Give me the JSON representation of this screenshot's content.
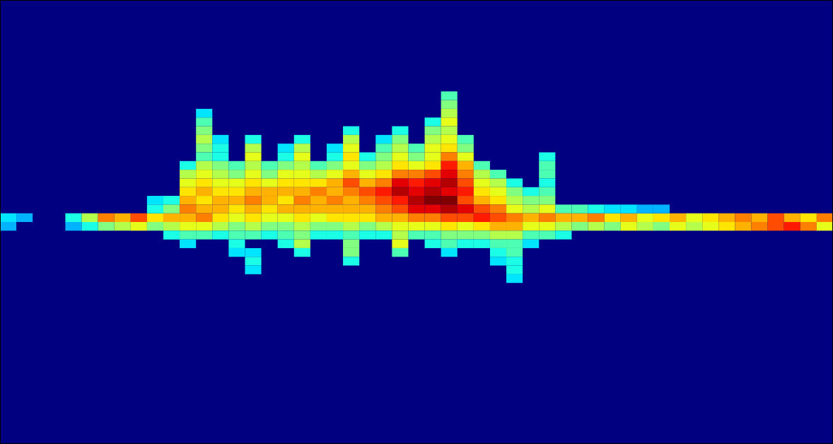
{
  "chart_data": {
    "type": "heatmap",
    "xlim": [
      0,
      102
    ],
    "ylim": [
      -51,
      51
    ],
    "xticks": [
      10,
      20,
      30,
      40,
      50,
      60,
      70,
      80,
      90
    ],
    "yticks": [
      -40,
      -30,
      -20,
      -10,
      0,
      10,
      20,
      30,
      40
    ],
    "tick_labels": false,
    "cell_size": [
      2,
      2
    ],
    "color_range": [
      0,
      1
    ],
    "cells": [
      [
        1,
        1,
        0.35
      ],
      [
        3,
        1,
        0.3
      ],
      [
        1,
        -1,
        0.3
      ],
      [
        9,
        1,
        0.4
      ],
      [
        11,
        1,
        0.55
      ],
      [
        13,
        1,
        0.75
      ],
      [
        15,
        1,
        0.7
      ],
      [
        17,
        1,
        0.8
      ],
      [
        19,
        1,
        0.65
      ],
      [
        21,
        1,
        0.7
      ],
      [
        9,
        -1,
        0.3
      ],
      [
        11,
        -1,
        0.4
      ],
      [
        13,
        -1,
        0.5
      ],
      [
        15,
        -1,
        0.55
      ],
      [
        17,
        -1,
        0.6
      ],
      [
        19,
        -1,
        0.5
      ],
      [
        21,
        -1,
        0.55
      ],
      [
        19,
        3,
        0.4
      ],
      [
        19,
        5,
        0.35
      ],
      [
        21,
        3,
        0.5
      ],
      [
        21,
        5,
        0.4
      ],
      [
        21,
        -3,
        0.4
      ],
      [
        71,
        1,
        0.7
      ],
      [
        73,
        1,
        0.75
      ],
      [
        75,
        1,
        0.65
      ],
      [
        77,
        1,
        0.7
      ],
      [
        79,
        1,
        0.6
      ],
      [
        81,
        1,
        0.65
      ],
      [
        83,
        1,
        0.7
      ],
      [
        85,
        1,
        0.6
      ],
      [
        87,
        1,
        0.65
      ],
      [
        89,
        1,
        0.7
      ],
      [
        91,
        1,
        0.75
      ],
      [
        93,
        1,
        0.7
      ],
      [
        95,
        1,
        0.8
      ],
      [
        97,
        1,
        0.7
      ],
      [
        99,
        1,
        0.65
      ],
      [
        101,
        1,
        0.75
      ],
      [
        71,
        -1,
        0.5
      ],
      [
        73,
        -1,
        0.55
      ],
      [
        75,
        -1,
        0.5
      ],
      [
        77,
        -1,
        0.6
      ],
      [
        79,
        -1,
        0.55
      ],
      [
        81,
        -1,
        0.5
      ],
      [
        83,
        -1,
        0.6
      ],
      [
        85,
        -1,
        0.55
      ],
      [
        87,
        -1,
        0.6
      ],
      [
        89,
        -1,
        0.65
      ],
      [
        91,
        -1,
        0.7
      ],
      [
        93,
        -1,
        0.75
      ],
      [
        95,
        -1,
        0.8
      ],
      [
        97,
        -1,
        0.85
      ],
      [
        99,
        -1,
        0.75
      ],
      [
        101,
        -1,
        0.6
      ],
      [
        71,
        3,
        0.45
      ],
      [
        73,
        3,
        0.4
      ],
      [
        75,
        3,
        0.35
      ],
      [
        77,
        3,
        0.35
      ],
      [
        79,
        3,
        0.3
      ],
      [
        81,
        3,
        0.3
      ],
      [
        23,
        13,
        0.4
      ],
      [
        23,
        11,
        0.55
      ],
      [
        23,
        9,
        0.6
      ],
      [
        23,
        7,
        0.65
      ],
      [
        23,
        5,
        0.7
      ],
      [
        23,
        3,
        0.75
      ],
      [
        23,
        1,
        0.7
      ],
      [
        23,
        -1,
        0.6
      ],
      [
        23,
        -3,
        0.45
      ],
      [
        23,
        -5,
        0.35
      ],
      [
        25,
        25,
        0.35
      ],
      [
        25,
        23,
        0.45
      ],
      [
        25,
        21,
        0.5
      ],
      [
        25,
        19,
        0.55
      ],
      [
        25,
        17,
        0.5
      ],
      [
        25,
        15,
        0.45
      ],
      [
        25,
        13,
        0.55
      ],
      [
        25,
        11,
        0.6
      ],
      [
        25,
        9,
        0.65
      ],
      [
        25,
        7,
        0.7
      ],
      [
        25,
        5,
        0.65
      ],
      [
        25,
        3,
        0.7
      ],
      [
        25,
        1,
        0.75
      ],
      [
        25,
        -1,
        0.6
      ],
      [
        25,
        -3,
        0.45
      ],
      [
        27,
        19,
        0.35
      ],
      [
        27,
        17,
        0.4
      ],
      [
        27,
        15,
        0.4
      ],
      [
        27,
        13,
        0.5
      ],
      [
        27,
        11,
        0.55
      ],
      [
        27,
        9,
        0.6
      ],
      [
        27,
        7,
        0.65
      ],
      [
        27,
        5,
        0.7
      ],
      [
        27,
        3,
        0.7
      ],
      [
        27,
        1,
        0.65
      ],
      [
        27,
        -1,
        0.55
      ],
      [
        27,
        -3,
        0.4
      ],
      [
        29,
        13,
        0.45
      ],
      [
        29,
        11,
        0.5
      ],
      [
        29,
        9,
        0.6
      ],
      [
        29,
        7,
        0.65
      ],
      [
        29,
        5,
        0.7
      ],
      [
        29,
        3,
        0.65
      ],
      [
        29,
        1,
        0.6
      ],
      [
        29,
        -1,
        0.5
      ],
      [
        29,
        -3,
        0.45
      ],
      [
        29,
        -5,
        0.4
      ],
      [
        29,
        -7,
        0.35
      ],
      [
        31,
        19,
        0.4
      ],
      [
        31,
        17,
        0.55
      ],
      [
        31,
        15,
        0.6
      ],
      [
        31,
        13,
        0.55
      ],
      [
        31,
        11,
        0.6
      ],
      [
        31,
        9,
        0.65
      ],
      [
        31,
        7,
        0.7
      ],
      [
        31,
        5,
        0.75
      ],
      [
        31,
        3,
        0.7
      ],
      [
        31,
        1,
        0.65
      ],
      [
        31,
        -1,
        0.55
      ],
      [
        31,
        -3,
        0.45
      ],
      [
        31,
        -7,
        0.35
      ],
      [
        31,
        -9,
        0.4
      ],
      [
        31,
        -11,
        0.35
      ],
      [
        33,
        13,
        0.45
      ],
      [
        33,
        11,
        0.5
      ],
      [
        33,
        9,
        0.6
      ],
      [
        33,
        7,
        0.7
      ],
      [
        33,
        5,
        0.7
      ],
      [
        33,
        3,
        0.65
      ],
      [
        33,
        1,
        0.6
      ],
      [
        33,
        -1,
        0.5
      ],
      [
        33,
        -3,
        0.4
      ],
      [
        35,
        17,
        0.35
      ],
      [
        35,
        15,
        0.4
      ],
      [
        35,
        13,
        0.5
      ],
      [
        35,
        11,
        0.6
      ],
      [
        35,
        9,
        0.65
      ],
      [
        35,
        7,
        0.7
      ],
      [
        35,
        5,
        0.65
      ],
      [
        35,
        3,
        0.7
      ],
      [
        35,
        1,
        0.6
      ],
      [
        35,
        -1,
        0.5
      ],
      [
        35,
        -3,
        0.45
      ],
      [
        35,
        -5,
        0.4
      ],
      [
        37,
        19,
        0.4
      ],
      [
        37,
        17,
        0.55
      ],
      [
        37,
        15,
        0.6
      ],
      [
        37,
        13,
        0.55
      ],
      [
        37,
        11,
        0.6
      ],
      [
        37,
        9,
        0.65
      ],
      [
        37,
        7,
        0.7
      ],
      [
        37,
        5,
        0.75
      ],
      [
        37,
        3,
        0.7
      ],
      [
        37,
        1,
        0.65
      ],
      [
        37,
        -1,
        0.55
      ],
      [
        37,
        -3,
        0.5
      ],
      [
        37,
        -5,
        0.55
      ],
      [
        37,
        -7,
        0.4
      ],
      [
        39,
        13,
        0.45
      ],
      [
        39,
        11,
        0.55
      ],
      [
        39,
        9,
        0.65
      ],
      [
        39,
        7,
        0.75
      ],
      [
        39,
        5,
        0.7
      ],
      [
        39,
        3,
        0.7
      ],
      [
        39,
        1,
        0.6
      ],
      [
        39,
        -1,
        0.5
      ],
      [
        39,
        -3,
        0.4
      ],
      [
        41,
        17,
        0.35
      ],
      [
        41,
        15,
        0.4
      ],
      [
        41,
        13,
        0.5
      ],
      [
        41,
        11,
        0.6
      ],
      [
        41,
        9,
        0.7
      ],
      [
        41,
        7,
        0.7
      ],
      [
        41,
        5,
        0.75
      ],
      [
        41,
        3,
        0.7
      ],
      [
        41,
        1,
        0.65
      ],
      [
        41,
        -1,
        0.5
      ],
      [
        41,
        -3,
        0.4
      ],
      [
        43,
        21,
        0.4
      ],
      [
        43,
        19,
        0.55
      ],
      [
        43,
        17,
        0.6
      ],
      [
        43,
        15,
        0.65
      ],
      [
        43,
        13,
        0.6
      ],
      [
        43,
        11,
        0.7
      ],
      [
        43,
        9,
        0.8
      ],
      [
        43,
        7,
        0.75
      ],
      [
        43,
        5,
        0.7
      ],
      [
        43,
        3,
        0.7
      ],
      [
        43,
        1,
        0.65
      ],
      [
        43,
        -1,
        0.55
      ],
      [
        43,
        -3,
        0.45
      ],
      [
        43,
        -5,
        0.5
      ],
      [
        43,
        -7,
        0.5
      ],
      [
        43,
        -9,
        0.4
      ],
      [
        45,
        15,
        0.4
      ],
      [
        45,
        13,
        0.5
      ],
      [
        45,
        11,
        0.6
      ],
      [
        45,
        9,
        0.7
      ],
      [
        45,
        7,
        0.8
      ],
      [
        45,
        5,
        0.75
      ],
      [
        45,
        3,
        0.7
      ],
      [
        45,
        1,
        0.65
      ],
      [
        45,
        -1,
        0.5
      ],
      [
        45,
        -3,
        0.4
      ],
      [
        47,
        19,
        0.35
      ],
      [
        47,
        17,
        0.45
      ],
      [
        47,
        15,
        0.5
      ],
      [
        47,
        13,
        0.55
      ],
      [
        47,
        11,
        0.65
      ],
      [
        47,
        9,
        0.75
      ],
      [
        47,
        7,
        0.85
      ],
      [
        47,
        5,
        0.8
      ],
      [
        47,
        3,
        0.75
      ],
      [
        47,
        1,
        0.7
      ],
      [
        47,
        -1,
        0.55
      ],
      [
        47,
        -3,
        0.4
      ],
      [
        49,
        21,
        0.4
      ],
      [
        49,
        19,
        0.5
      ],
      [
        49,
        17,
        0.55
      ],
      [
        49,
        15,
        0.6
      ],
      [
        49,
        13,
        0.65
      ],
      [
        49,
        11,
        0.75
      ],
      [
        49,
        9,
        0.9
      ],
      [
        49,
        7,
        0.95
      ],
      [
        49,
        5,
        0.85
      ],
      [
        49,
        3,
        0.8
      ],
      [
        49,
        1,
        0.7
      ],
      [
        49,
        -1,
        0.6
      ],
      [
        49,
        -3,
        0.55
      ],
      [
        49,
        -5,
        0.6
      ],
      [
        49,
        -7,
        0.45
      ],
      [
        51,
        17,
        0.45
      ],
      [
        51,
        15,
        0.5
      ],
      [
        51,
        13,
        0.6
      ],
      [
        51,
        11,
        0.75
      ],
      [
        51,
        9,
        0.85
      ],
      [
        51,
        7,
        0.9
      ],
      [
        51,
        5,
        0.95
      ],
      [
        51,
        3,
        0.9
      ],
      [
        51,
        1,
        0.75
      ],
      [
        51,
        -1,
        0.6
      ],
      [
        51,
        -3,
        0.45
      ],
      [
        53,
        23,
        0.4
      ],
      [
        53,
        21,
        0.5
      ],
      [
        53,
        19,
        0.55
      ],
      [
        53,
        17,
        0.6
      ],
      [
        53,
        15,
        0.6
      ],
      [
        53,
        13,
        0.65
      ],
      [
        53,
        11,
        0.8
      ],
      [
        53,
        9,
        0.9
      ],
      [
        53,
        7,
        0.95
      ],
      [
        53,
        5,
        1.0
      ],
      [
        53,
        3,
        0.9
      ],
      [
        53,
        1,
        0.75
      ],
      [
        53,
        -1,
        0.6
      ],
      [
        53,
        -3,
        0.45
      ],
      [
        53,
        -5,
        0.4
      ],
      [
        55,
        29,
        0.45
      ],
      [
        55,
        27,
        0.5
      ],
      [
        55,
        25,
        0.55
      ],
      [
        55,
        23,
        0.6
      ],
      [
        55,
        21,
        0.55
      ],
      [
        55,
        19,
        0.6
      ],
      [
        55,
        17,
        0.65
      ],
      [
        55,
        15,
        0.75
      ],
      [
        55,
        13,
        0.85
      ],
      [
        55,
        11,
        0.9
      ],
      [
        55,
        9,
        0.95
      ],
      [
        55,
        7,
        0.9
      ],
      [
        55,
        5,
        1.0
      ],
      [
        55,
        3,
        0.95
      ],
      [
        55,
        1,
        0.8
      ],
      [
        55,
        -1,
        0.65
      ],
      [
        55,
        -3,
        0.5
      ],
      [
        55,
        -5,
        0.45
      ],
      [
        55,
        -7,
        0.35
      ],
      [
        57,
        19,
        0.45
      ],
      [
        57,
        17,
        0.5
      ],
      [
        57,
        15,
        0.6
      ],
      [
        57,
        13,
        0.7
      ],
      [
        57,
        11,
        0.75
      ],
      [
        57,
        9,
        0.8
      ],
      [
        57,
        7,
        0.85
      ],
      [
        57,
        5,
        0.8
      ],
      [
        57,
        3,
        0.9
      ],
      [
        57,
        1,
        0.8
      ],
      [
        57,
        -1,
        0.6
      ],
      [
        57,
        -3,
        0.5
      ],
      [
        57,
        -5,
        0.4
      ],
      [
        59,
        13,
        0.45
      ],
      [
        59,
        11,
        0.55
      ],
      [
        59,
        9,
        0.6
      ],
      [
        59,
        7,
        0.65
      ],
      [
        59,
        5,
        0.7
      ],
      [
        59,
        3,
        0.8
      ],
      [
        59,
        1,
        0.85
      ],
      [
        59,
        -1,
        0.65
      ],
      [
        59,
        -3,
        0.5
      ],
      [
        59,
        -5,
        0.4
      ],
      [
        61,
        11,
        0.45
      ],
      [
        61,
        9,
        0.55
      ],
      [
        61,
        7,
        0.6
      ],
      [
        61,
        5,
        0.65
      ],
      [
        61,
        3,
        0.75
      ],
      [
        61,
        1,
        0.8
      ],
      [
        61,
        -1,
        0.7
      ],
      [
        61,
        -3,
        0.55
      ],
      [
        61,
        -5,
        0.45
      ],
      [
        61,
        -7,
        0.4
      ],
      [
        61,
        -9,
        0.35
      ],
      [
        63,
        9,
        0.4
      ],
      [
        63,
        7,
        0.5
      ],
      [
        63,
        5,
        0.55
      ],
      [
        63,
        3,
        0.6
      ],
      [
        63,
        1,
        0.75
      ],
      [
        63,
        -1,
        0.7
      ],
      [
        63,
        -3,
        0.55
      ],
      [
        63,
        -5,
        0.45
      ],
      [
        63,
        -7,
        0.45
      ],
      [
        63,
        -9,
        0.4
      ],
      [
        63,
        -11,
        0.4
      ],
      [
        63,
        -13,
        0.35
      ],
      [
        65,
        7,
        0.4
      ],
      [
        65,
        5,
        0.5
      ],
      [
        65,
        3,
        0.55
      ],
      [
        65,
        1,
        0.7
      ],
      [
        65,
        -1,
        0.6
      ],
      [
        65,
        -3,
        0.45
      ],
      [
        65,
        -5,
        0.35
      ],
      [
        67,
        15,
        0.4
      ],
      [
        67,
        13,
        0.45
      ],
      [
        67,
        11,
        0.45
      ],
      [
        67,
        9,
        0.4
      ],
      [
        67,
        7,
        0.45
      ],
      [
        67,
        5,
        0.5
      ],
      [
        67,
        3,
        0.6
      ],
      [
        67,
        1,
        0.75
      ],
      [
        67,
        -1,
        0.6
      ],
      [
        67,
        -3,
        0.45
      ],
      [
        69,
        3,
        0.45
      ],
      [
        69,
        1,
        0.7
      ],
      [
        69,
        -1,
        0.55
      ],
      [
        69,
        -3,
        0.4
      ]
    ]
  }
}
